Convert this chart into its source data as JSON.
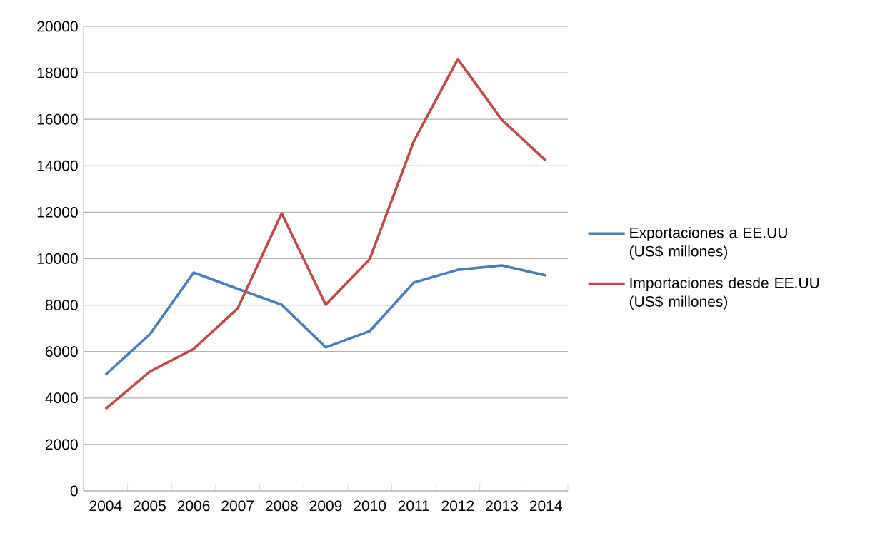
{
  "chart_data": {
    "type": "line",
    "categories": [
      "2004",
      "2005",
      "2006",
      "2007",
      "2008",
      "2009",
      "2010",
      "2011",
      "2012",
      "2013",
      "2014"
    ],
    "series": [
      {
        "name": "Exportaciones  a EE.UU (US$ millones)",
        "color": "#4a7ebb",
        "values": [
          5000,
          6730,
          9400,
          8700,
          8020,
          6180,
          6880,
          8970,
          9520,
          9710,
          9280
        ]
      },
      {
        "name": "Importaciones desde EE.UU (US$ millones)",
        "color": "#be4b48",
        "values": [
          3530,
          5130,
          6110,
          7860,
          11950,
          8020,
          9980,
          15050,
          18590,
          15980,
          14220
        ]
      }
    ],
    "ylim": [
      0,
      20000
    ],
    "yticks": [
      0,
      2000,
      4000,
      6000,
      8000,
      10000,
      12000,
      14000,
      16000,
      18000,
      20000
    ],
    "grid": "y",
    "legend": "right",
    "marker": "none",
    "line_style": "solid"
  }
}
